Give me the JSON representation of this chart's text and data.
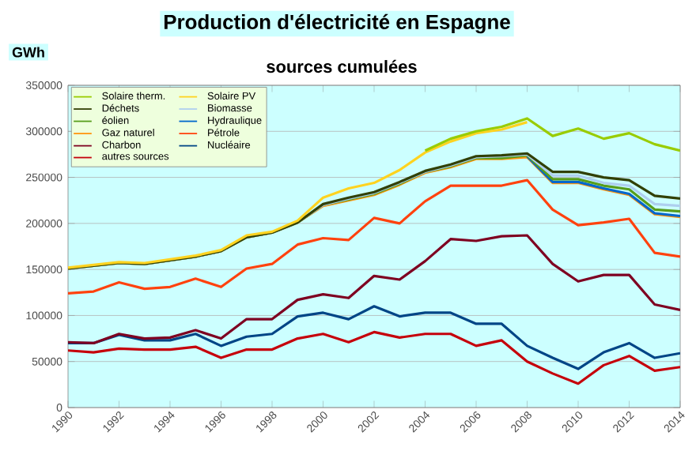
{
  "chart_data": {
    "type": "line",
    "title": "Production d'électricité en Espagne",
    "subtitle": "sources cumulées",
    "ylabel": "GWh",
    "x": [
      1990,
      1991,
      1992,
      1993,
      1994,
      1995,
      1996,
      1997,
      1998,
      1999,
      2000,
      2001,
      2002,
      2003,
      2004,
      2005,
      2006,
      2007,
      2008,
      2009,
      2010,
      2011,
      2012,
      2013,
      2014
    ],
    "xlim": [
      1990,
      2014
    ],
    "xticks": [
      1990,
      1992,
      1994,
      1996,
      1998,
      2000,
      2002,
      2004,
      2006,
      2008,
      2010,
      2012,
      2014
    ],
    "ylim": [
      0,
      350000
    ],
    "yticks": [
      0,
      50000,
      100000,
      150000,
      200000,
      250000,
      300000,
      350000
    ],
    "grid": "y",
    "legend": "top left",
    "marker": "none",
    "line_style": "solid",
    "series": [
      {
        "name": "Solaire therm.",
        "color": "#99cc00",
        "values": [
          null,
          null,
          null,
          null,
          null,
          null,
          null,
          null,
          null,
          null,
          null,
          null,
          null,
          null,
          279000,
          292000,
          300000,
          305000,
          314000,
          295000,
          303000,
          292000,
          298000,
          286000,
          279000
        ]
      },
      {
        "name": "Solaire PV",
        "color": "#ffd320",
        "values": [
          152000,
          155000,
          158000,
          157000,
          161000,
          165000,
          171000,
          187000,
          191000,
          203000,
          228000,
          238000,
          244000,
          258000,
          277000,
          289000,
          298000,
          302000,
          310000,
          null,
          null,
          null,
          null,
          null,
          null
        ]
      },
      {
        "name": "Déchets",
        "color": "#314004",
        "values": [
          151000,
          154000,
          157000,
          156000,
          160000,
          164000,
          170000,
          185000,
          190000,
          201000,
          221000,
          228000,
          234000,
          245000,
          257000,
          264000,
          273000,
          274000,
          276000,
          256000,
          256000,
          250000,
          247000,
          230000,
          227000
        ]
      },
      {
        "name": "Biomasse",
        "color": "#aecfef",
        "values": [
          151000,
          154000,
          157000,
          156000,
          160000,
          164000,
          170000,
          185000,
          190000,
          201000,
          220000,
          227000,
          233000,
          244000,
          256000,
          263000,
          272000,
          273000,
          275000,
          252000,
          252000,
          244000,
          241000,
          221000,
          219000
        ]
      },
      {
        "name": "éolien",
        "color": "#579d1c",
        "values": [
          151000,
          154000,
          157000,
          156000,
          160000,
          164000,
          170000,
          185000,
          190000,
          201000,
          220000,
          226000,
          232000,
          243000,
          256000,
          262000,
          271000,
          271000,
          274000,
          248000,
          248000,
          241000,
          237000,
          215000,
          213000
        ]
      },
      {
        "name": "Hydraulique",
        "color": "#0066cc",
        "values": [
          null,
          null,
          null,
          null,
          null,
          null,
          null,
          null,
          null,
          null,
          null,
          null,
          null,
          null,
          null,
          null,
          null,
          null,
          273000,
          245000,
          245000,
          238000,
          232000,
          211000,
          208000
        ]
      },
      {
        "name": "Gaz naturel",
        "color": "#ff950e",
        "values": [
          151000,
          154000,
          157000,
          156000,
          160000,
          164000,
          170000,
          185000,
          190000,
          201000,
          219000,
          225000,
          231000,
          242000,
          255000,
          261000,
          270000,
          270000,
          272000,
          244000,
          244000,
          237000,
          231000,
          210000,
          207000
        ]
      },
      {
        "name": "Pétrole",
        "color": "#ff420e",
        "values": [
          124000,
          126000,
          136000,
          129000,
          131000,
          140000,
          131000,
          151000,
          156000,
          177000,
          184000,
          182000,
          206000,
          200000,
          224000,
          241000,
          241000,
          241000,
          247000,
          215000,
          198000,
          201000,
          205000,
          168000,
          164000
        ]
      },
      {
        "name": "Charbon",
        "color": "#7e0021",
        "values": [
          71000,
          70000,
          80000,
          75000,
          76000,
          84000,
          75000,
          96000,
          96000,
          117000,
          123000,
          119000,
          143000,
          139000,
          159000,
          183000,
          181000,
          186000,
          187000,
          156000,
          137000,
          144000,
          144000,
          112000,
          106000
        ]
      },
      {
        "name": "Nucléaire",
        "color": "#004586",
        "values": [
          70000,
          70000,
          79000,
          73000,
          73000,
          80000,
          67000,
          77000,
          80000,
          99000,
          103000,
          96000,
          110000,
          99000,
          103000,
          103000,
          91000,
          91000,
          67000,
          54000,
          42000,
          60000,
          70000,
          54000,
          59000
        ]
      },
      {
        "name": "autres sources",
        "color": "#c5000b",
        "values": [
          62000,
          60000,
          64000,
          63000,
          63000,
          66000,
          54000,
          63000,
          63000,
          75000,
          80000,
          71000,
          82000,
          76000,
          80000,
          80000,
          67000,
          73000,
          50000,
          37000,
          26000,
          46000,
          56000,
          40000,
          44000
        ]
      }
    ]
  }
}
